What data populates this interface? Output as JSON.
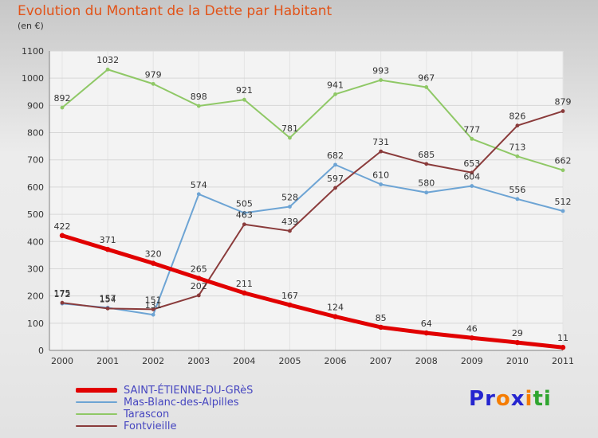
{
  "title": "Evolution du Montant de la Dette par Habitant",
  "subtitle": "(en €)",
  "chart_data": {
    "type": "line",
    "categories": [
      "2000",
      "2001",
      "2002",
      "2003",
      "2004",
      "2005",
      "2006",
      "2007",
      "2008",
      "2009",
      "2010",
      "2011"
    ],
    "ylim": [
      0,
      1100
    ],
    "ytick_step": 100,
    "grid": true,
    "legend_position": "bottom-left",
    "label_color": "#333333",
    "axis_color": "#808080",
    "series": [
      {
        "name": "SAINT-ÉTIENNE-DU-GRèS",
        "color": "#e10000",
        "width": 5,
        "values": [
          422,
          371,
          320,
          265,
          211,
          167,
          124,
          85,
          64,
          46,
          29,
          11
        ]
      },
      {
        "name": "Mas-Blanc-des-Alpilles",
        "color": "#6da4d4",
        "width": 2,
        "values": [
          172,
          157,
          131,
          574,
          505,
          528,
          682,
          610,
          580,
          604,
          556,
          512
        ]
      },
      {
        "name": "Tarascon",
        "color": "#8fc866",
        "width": 2,
        "values": [
          892,
          1032,
          979,
          898,
          921,
          781,
          941,
          993,
          967,
          777,
          713,
          662
        ]
      },
      {
        "name": "Fontvieille",
        "color": "#8a3b3b",
        "width": 2,
        "values": [
          175,
          154,
          151,
          202,
          463,
          439,
          597,
          731,
          685,
          653,
          826,
          879
        ]
      }
    ]
  },
  "logo": {
    "text": "Proxiti",
    "letters": [
      {
        "ch": "P",
        "color": "#2525cf"
      },
      {
        "ch": "r",
        "color": "#2525cf"
      },
      {
        "ch": "o",
        "color": "#f57c00"
      },
      {
        "ch": "x",
        "color": "#2525cf"
      },
      {
        "ch": "i",
        "color": "#f57c00"
      },
      {
        "ch": "t",
        "color": "#2fa52f"
      },
      {
        "ch": "i",
        "color": "#2fa52f"
      }
    ]
  }
}
